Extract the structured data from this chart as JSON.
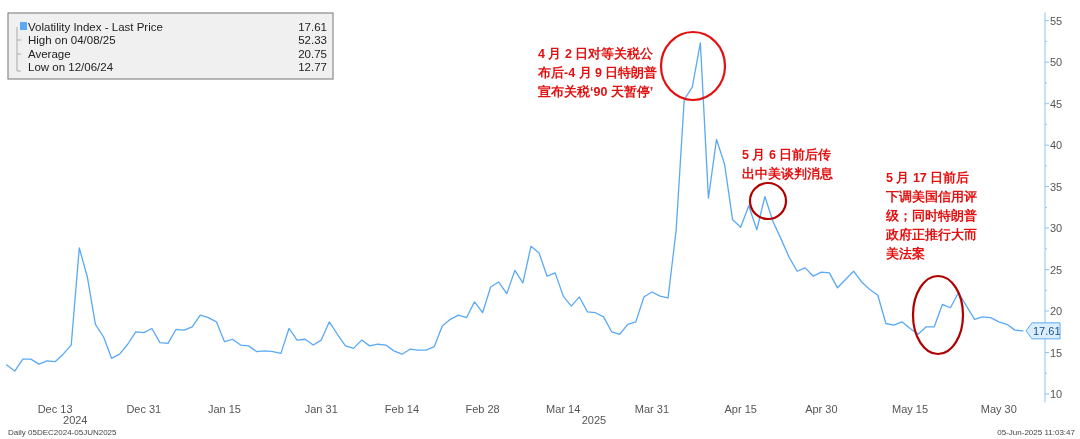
{
  "chart_data": {
    "type": "line",
    "legend": "top left",
    "categories": [
      null,
      null,
      null,
      null,
      null,
      null,
      "Dec 13",
      null,
      null,
      null,
      null,
      null,
      null,
      null,
      null,
      null,
      null,
      "Dec 31",
      null,
      null,
      null,
      null,
      null,
      null,
      null,
      null,
      null,
      "Jan 15",
      null,
      null,
      null,
      null,
      null,
      null,
      null,
      null,
      null,
      null,
      null,
      "Jan 31",
      null,
      null,
      null,
      null,
      null,
      null,
      null,
      null,
      null,
      "Feb 14",
      null,
      null,
      null,
      null,
      null,
      null,
      null,
      null,
      null,
      "Feb 28",
      null,
      null,
      null,
      null,
      null,
      null,
      null,
      null,
      null,
      "Mar 14",
      null,
      null,
      null,
      null,
      null,
      null,
      null,
      null,
      null,
      null,
      "Mar 31",
      null,
      null,
      null,
      null,
      null,
      null,
      null,
      null,
      null,
      null,
      "Apr 15",
      null,
      null,
      null,
      null,
      null,
      null,
      null,
      null,
      null,
      "Apr 30",
      null,
      null,
      null,
      null,
      null,
      null,
      null,
      null,
      null,
      null,
      "May 15",
      null,
      null,
      null,
      null,
      null,
      null,
      null,
      null,
      null,
      null,
      "May 30",
      null,
      null,
      null
    ],
    "series": [
      {
        "name": "Volatility Index - Last Price",
        "color": "#5aa9f5",
        "values": [
          13.5,
          12.77,
          14.2,
          14.2,
          13.6,
          14.0,
          13.9,
          14.8,
          15.9,
          27.6,
          24.1,
          18.4,
          16.9,
          14.3,
          14.8,
          16.0,
          17.5,
          17.4,
          17.9,
          16.2,
          16.1,
          17.8,
          17.7,
          18.1,
          19.5,
          19.2,
          18.7,
          16.3,
          16.6,
          15.9,
          15.8,
          15.1,
          15.2,
          15.1,
          14.9,
          17.9,
          16.5,
          16.6,
          15.9,
          16.5,
          18.7,
          17.2,
          15.8,
          15.5,
          16.5,
          15.8,
          16.0,
          15.9,
          15.2,
          14.8,
          15.4,
          15.3,
          15.3,
          15.7,
          18.2,
          19.0,
          19.5,
          19.2,
          21.1,
          19.8,
          22.9,
          23.5,
          22.1,
          24.9,
          23.4,
          27.8,
          27.0,
          24.2,
          24.6,
          21.8,
          20.6,
          21.7,
          19.9,
          19.8,
          19.3,
          17.5,
          17.2,
          18.4,
          18.7,
          21.7,
          22.3,
          21.8,
          21.6,
          29.8,
          45.5,
          47.0,
          52.33,
          33.6,
          40.7,
          37.7,
          31.0,
          30.1,
          32.7,
          29.8,
          33.8,
          30.8,
          28.7,
          26.5,
          24.8,
          25.2,
          24.2,
          24.7,
          24.6,
          22.8,
          23.8,
          24.8,
          23.5,
          22.6,
          21.9,
          18.5,
          18.3,
          18.7,
          17.9,
          17.2,
          18.1,
          18.1,
          20.8,
          20.4,
          22.2,
          20.6,
          19.0,
          19.3,
          19.2,
          18.7,
          18.4,
          17.7,
          17.61
        ],
        "value_labels": [
          null,
          null,
          null,
          null,
          null,
          null,
          null,
          null,
          null,
          null,
          null,
          null,
          null,
          null,
          null,
          null,
          null,
          null,
          null,
          null,
          null,
          null,
          null,
          null,
          null,
          null,
          null,
          null,
          null,
          null,
          null,
          null,
          null,
          null,
          null,
          null,
          null,
          null,
          null,
          null,
          null,
          null,
          null,
          null,
          null,
          null,
          null,
          null,
          null,
          null,
          null,
          null,
          null,
          null,
          null,
          null,
          null,
          null,
          null,
          null,
          null,
          null,
          null,
          null,
          null,
          null,
          null,
          null,
          null,
          null,
          null,
          null,
          null,
          null,
          null,
          null,
          null,
          null,
          null,
          null,
          null,
          null,
          null,
          null,
          null,
          null,
          null,
          null,
          null,
          null,
          null,
          null,
          null,
          null,
          null,
          null,
          null,
          null,
          null,
          null,
          null,
          null,
          null,
          null,
          null,
          null,
          null,
          null,
          null,
          null,
          null,
          null,
          null,
          null,
          null,
          null,
          null,
          null,
          null,
          null,
          null,
          null,
          null,
          null,
          null,
          null,
          "17.61"
        ]
      }
    ],
    "ylim": [
      9,
      56
    ],
    "yticks": [
      10,
      15,
      20,
      25,
      30,
      35,
      40,
      45,
      50,
      55
    ],
    "annotations": [
      "4 月 2 日对等关税公布后-4 月 9 日特朗普宣布关税‘90 天暂停’",
      "5 月 6 日前后传出中美谈判消息",
      "5 月 17 日前后下调美国信用评级；同时特朗普政府正推行大而美法案",
      "Daily 05DEC2024-05JUN2025",
      "05-Jun-2025 11:03:47",
      "2024",
      "2025",
      "High on 04/08/25",
      "52.33",
      "Average",
      "20.75",
      "Low on 12/06/24",
      "12.77"
    ]
  }
}
